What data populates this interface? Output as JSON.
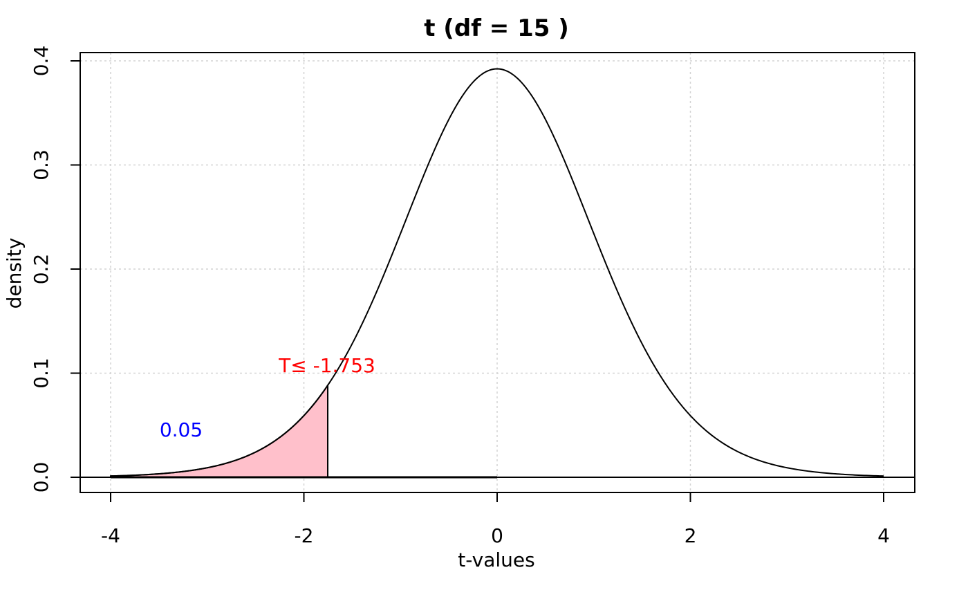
{
  "chart_data": {
    "type": "area",
    "title": "t (df = 15 )",
    "xlabel": "t-values",
    "ylabel": "density",
    "df": 15,
    "xlim": [
      -4,
      4
    ],
    "ylim": [
      0,
      0.4
    ],
    "x_ticks": [
      -4,
      -2,
      0,
      2,
      4
    ],
    "x_tick_labels": [
      "-4",
      "-2",
      "0",
      "2",
      "4"
    ],
    "y_ticks": [
      0,
      0.1,
      0.2,
      0.3,
      0.4
    ],
    "y_tick_labels": [
      "0.0",
      "0.1",
      "0.2",
      "0.3",
      "0.4"
    ],
    "grid": true,
    "series": [
      {
        "x": [
          -4,
          -3.5,
          -3,
          -2.5,
          -2,
          -1.753,
          -1.5,
          -1,
          -0.5,
          0,
          0.5,
          1,
          1.5,
          2,
          2.5,
          3,
          3.5,
          4
        ],
        "y": [
          0.0012,
          0.0027,
          0.0069,
          0.0202,
          0.0592,
          0.0873,
          0.1276,
          0.2346,
          0.3454,
          0.3925,
          0.3454,
          0.2346,
          0.1276,
          0.0592,
          0.0202,
          0.0069,
          0.0027,
          0.0012
        ]
      }
    ],
    "shaded_region": {
      "from": -4,
      "to": -1.753,
      "fill": "#ffc0cb"
    },
    "critical_value": -1.753,
    "annotations": {
      "critical_label": "T≤  -1.753",
      "critical_color": "#ff0000",
      "area_label": "0.05",
      "area_color": "#0000ff"
    }
  }
}
